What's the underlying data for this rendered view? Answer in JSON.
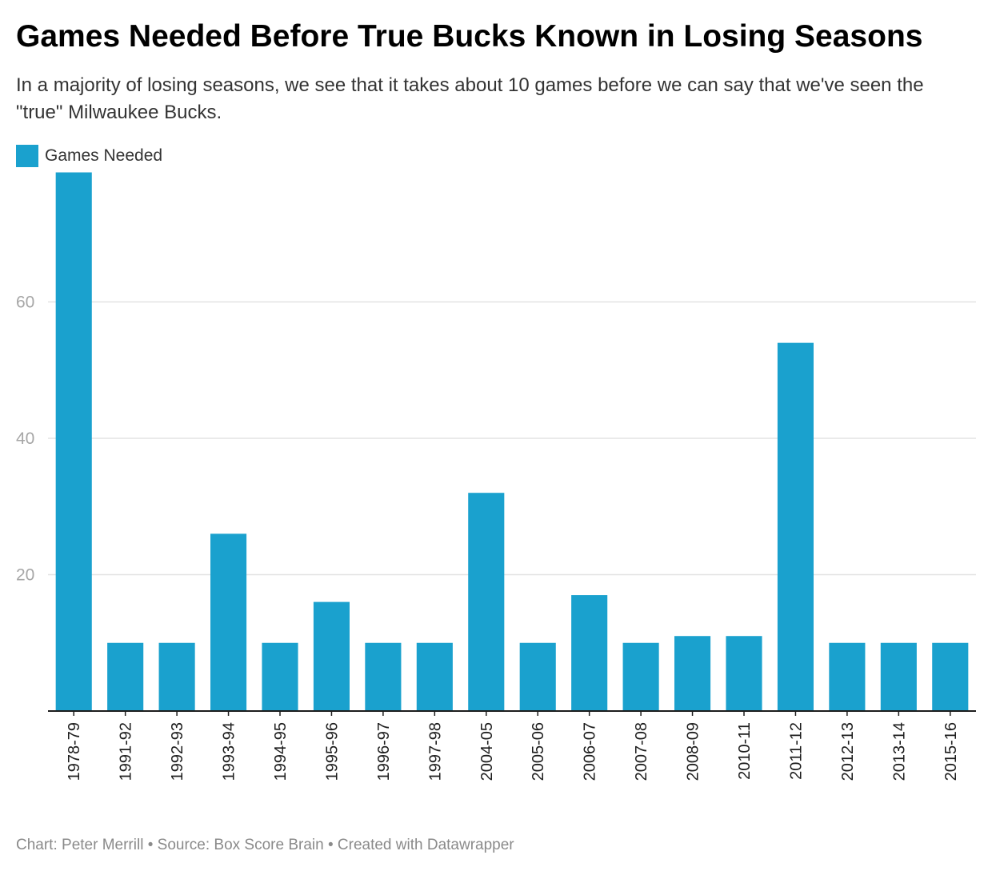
{
  "title": "Games Needed Before True Bucks Known in Losing Seasons",
  "subtitle": "In a majority of losing seasons, we see that it takes about 10 games before we can say that we've seen the \"true\" Milwaukee Bucks.",
  "footer": {
    "chart_credit": "Chart: Peter Merrill",
    "separator": "•",
    "source": "Source: Box Score Brain",
    "created_with": "Created with Datawrapper"
  },
  "colors": {
    "bar": "#1aa1ce",
    "grid": "#e3e3e3",
    "axis": "#1d1d1d",
    "tick_label": "#a6a6a6"
  },
  "chart_data": {
    "type": "bar",
    "title": "Games Needed Before True Bucks Known in Losing Seasons",
    "xlabel": "",
    "ylabel": "",
    "categories": [
      "1978-79",
      "1991-92",
      "1992-93",
      "1993-94",
      "1994-95",
      "1995-96",
      "1996-97",
      "1997-98",
      "2004-05",
      "2005-06",
      "2006-07",
      "2007-08",
      "2008-09",
      "2010-11",
      "2011-12",
      "2012-13",
      "2013-14",
      "2015-16"
    ],
    "series": [
      {
        "name": "Games Needed",
        "values": [
          79,
          10,
          10,
          26,
          10,
          16,
          10,
          10,
          32,
          10,
          17,
          10,
          11,
          11,
          54,
          10,
          10,
          10
        ]
      }
    ],
    "ylim": [
      0,
      80
    ],
    "yticks": [
      20,
      40,
      60
    ],
    "grid": true,
    "legend": "top-left"
  }
}
